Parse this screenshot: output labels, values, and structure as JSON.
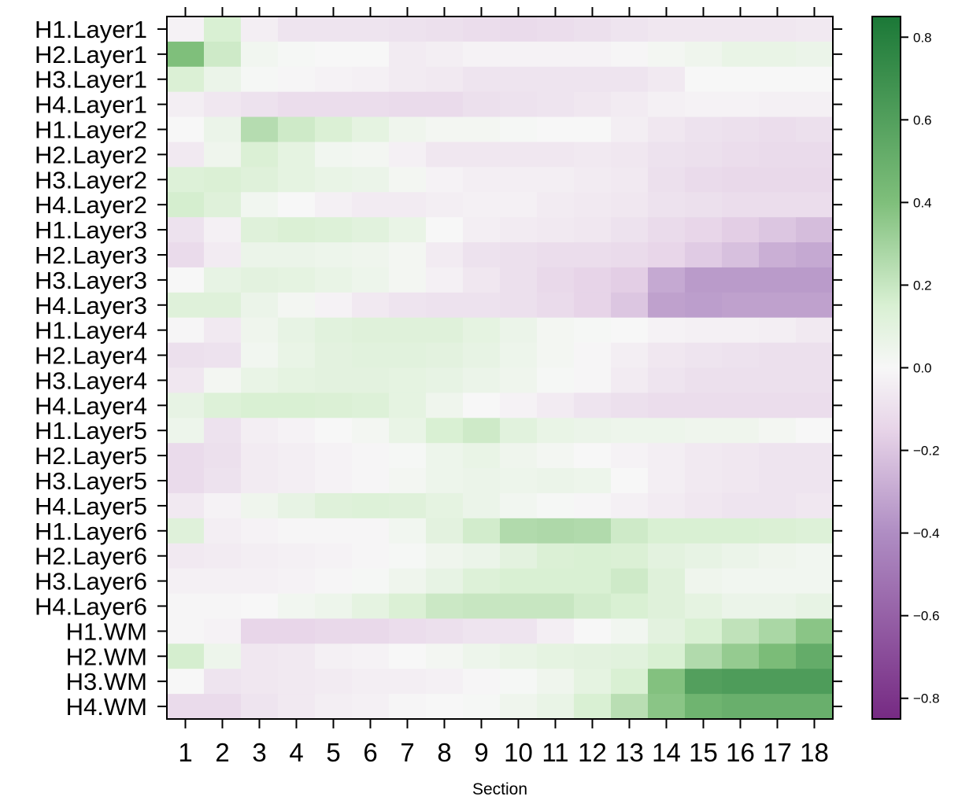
{
  "chart_data": {
    "type": "heatmap",
    "xlabel": "Section",
    "x": [
      "1",
      "2",
      "3",
      "4",
      "5",
      "6",
      "7",
      "8",
      "9",
      "10",
      "11",
      "12",
      "13",
      "14",
      "15",
      "16",
      "17",
      "18"
    ],
    "y": [
      "H1.Layer1",
      "H2.Layer1",
      "H3.Layer1",
      "H4.Layer1",
      "H1.Layer2",
      "H2.Layer2",
      "H3.Layer2",
      "H4.Layer2",
      "H1.Layer3",
      "H2.Layer3",
      "H3.Layer3",
      "H4.Layer3",
      "H1.Layer4",
      "H2.Layer4",
      "H3.Layer4",
      "H4.Layer4",
      "H1.Layer5",
      "H2.Layer5",
      "H3.Layer5",
      "H4.Layer5",
      "H1.Layer6",
      "H2.Layer6",
      "H3.Layer6",
      "H4.Layer6",
      "H1.WM",
      "H2.WM",
      "H3.WM",
      "H4.WM"
    ],
    "values": [
      [
        -0.02,
        0.15,
        -0.04,
        -0.08,
        -0.08,
        -0.08,
        -0.09,
        -0.1,
        -0.11,
        -0.12,
        -0.11,
        -0.1,
        -0.08,
        -0.07,
        -0.07,
        -0.07,
        -0.07,
        -0.06
      ],
      [
        0.4,
        0.18,
        0.03,
        0.01,
        0.0,
        0.0,
        -0.05,
        -0.04,
        -0.02,
        -0.02,
        -0.02,
        -0.02,
        -0.01,
        0.02,
        0.04,
        0.07,
        0.07,
        0.06
      ],
      [
        0.14,
        0.06,
        0.01,
        -0.01,
        -0.02,
        -0.03,
        -0.05,
        -0.06,
        -0.08,
        -0.08,
        -0.08,
        -0.08,
        -0.08,
        -0.06,
        0.0,
        0.0,
        0.0,
        0.0
      ],
      [
        -0.04,
        -0.07,
        -0.09,
        -0.11,
        -0.11,
        -0.11,
        -0.12,
        -0.12,
        -0.1,
        -0.09,
        -0.08,
        -0.07,
        -0.05,
        -0.03,
        -0.02,
        -0.02,
        -0.03,
        -0.03
      ],
      [
        0.0,
        0.06,
        0.25,
        0.18,
        0.14,
        0.09,
        0.04,
        0.02,
        0.02,
        0.01,
        0.0,
        0.0,
        -0.04,
        -0.07,
        -0.09,
        -0.1,
        -0.11,
        -0.1
      ],
      [
        -0.06,
        0.04,
        0.14,
        0.09,
        0.03,
        0.02,
        -0.03,
        -0.07,
        -0.07,
        -0.07,
        -0.07,
        -0.06,
        -0.07,
        -0.09,
        -0.1,
        -0.11,
        -0.12,
        -0.12
      ],
      [
        0.13,
        0.14,
        0.12,
        0.09,
        0.07,
        0.06,
        0.02,
        -0.02,
        -0.04,
        -0.04,
        -0.04,
        -0.05,
        -0.06,
        -0.1,
        -0.12,
        -0.13,
        -0.13,
        -0.13
      ],
      [
        0.16,
        0.12,
        0.03,
        0.0,
        -0.03,
        -0.05,
        -0.05,
        -0.04,
        -0.03,
        -0.03,
        -0.05,
        -0.06,
        -0.07,
        -0.09,
        -0.1,
        -0.11,
        -0.11,
        -0.11
      ],
      [
        -0.09,
        -0.03,
        0.12,
        0.14,
        0.13,
        0.11,
        0.07,
        0.0,
        -0.04,
        -0.05,
        -0.06,
        -0.07,
        -0.09,
        -0.12,
        -0.14,
        -0.17,
        -0.2,
        -0.23
      ],
      [
        -0.12,
        -0.05,
        0.06,
        0.06,
        0.05,
        0.04,
        0.02,
        -0.05,
        -0.09,
        -0.1,
        -0.11,
        -0.11,
        -0.12,
        -0.14,
        -0.18,
        -0.22,
        -0.28,
        -0.3
      ],
      [
        0.0,
        0.08,
        0.1,
        0.09,
        0.07,
        0.05,
        0.02,
        -0.03,
        -0.07,
        -0.1,
        -0.13,
        -0.15,
        -0.17,
        -0.3,
        -0.35,
        -0.35,
        -0.35,
        -0.35
      ],
      [
        0.12,
        0.12,
        0.06,
        0.02,
        -0.02,
        -0.06,
        -0.08,
        -0.09,
        -0.09,
        -0.1,
        -0.12,
        -0.15,
        -0.2,
        -0.33,
        -0.34,
        -0.33,
        -0.33,
        -0.33
      ],
      [
        -0.01,
        -0.06,
        0.04,
        0.08,
        0.11,
        0.12,
        0.12,
        0.12,
        0.09,
        0.06,
        0.02,
        0.01,
        0.0,
        -0.02,
        -0.03,
        -0.03,
        -0.04,
        -0.06
      ],
      [
        -0.1,
        -0.09,
        0.03,
        0.07,
        0.1,
        0.11,
        0.11,
        0.1,
        0.08,
        0.05,
        0.02,
        -0.01,
        -0.04,
        -0.07,
        -0.08,
        -0.09,
        -0.1,
        -0.1
      ],
      [
        -0.07,
        0.02,
        0.07,
        0.09,
        0.1,
        0.1,
        0.09,
        0.08,
        0.06,
        0.04,
        0.01,
        -0.01,
        -0.05,
        -0.08,
        -0.1,
        -0.1,
        -0.1,
        -0.1
      ],
      [
        0.08,
        0.13,
        0.15,
        0.15,
        0.14,
        0.13,
        0.09,
        0.04,
        0.0,
        -0.02,
        -0.05,
        -0.08,
        -0.1,
        -0.11,
        -0.11,
        -0.11,
        -0.11,
        -0.11
      ],
      [
        0.05,
        -0.09,
        -0.04,
        -0.02,
        0.0,
        0.02,
        0.07,
        0.15,
        0.18,
        0.11,
        0.07,
        0.06,
        0.05,
        0.05,
        0.04,
        0.04,
        0.02,
        0.0
      ],
      [
        -0.12,
        -0.1,
        -0.05,
        -0.04,
        -0.02,
        -0.01,
        0.01,
        0.05,
        0.07,
        0.04,
        0.02,
        0.0,
        -0.02,
        -0.04,
        -0.06,
        -0.07,
        -0.08,
        -0.08
      ],
      [
        -0.12,
        -0.09,
        -0.05,
        -0.04,
        -0.02,
        -0.01,
        0.02,
        0.05,
        0.06,
        0.05,
        0.06,
        0.05,
        0.0,
        -0.04,
        -0.06,
        -0.07,
        -0.08,
        -0.08
      ],
      [
        -0.06,
        -0.02,
        0.04,
        0.08,
        0.12,
        0.13,
        0.12,
        0.09,
        0.06,
        0.03,
        0.01,
        -0.01,
        -0.03,
        -0.05,
        -0.07,
        -0.08,
        -0.08,
        -0.07
      ],
      [
        0.12,
        -0.04,
        -0.02,
        -0.01,
        -0.01,
        -0.01,
        0.03,
        0.1,
        0.17,
        0.26,
        0.27,
        0.26,
        0.18,
        0.15,
        0.15,
        0.15,
        0.14,
        0.13
      ],
      [
        -0.06,
        -0.05,
        -0.04,
        -0.03,
        -0.02,
        -0.01,
        0.01,
        0.04,
        0.06,
        0.1,
        0.14,
        0.15,
        0.14,
        0.1,
        0.08,
        0.06,
        0.04,
        0.03
      ],
      [
        -0.03,
        -0.03,
        -0.03,
        -0.02,
        -0.01,
        0.01,
        0.04,
        0.08,
        0.13,
        0.15,
        0.15,
        0.15,
        0.18,
        0.12,
        0.04,
        0.03,
        0.03,
        0.03
      ],
      [
        -0.01,
        -0.01,
        0.0,
        0.03,
        0.05,
        0.09,
        0.14,
        0.19,
        0.2,
        0.2,
        0.2,
        0.17,
        0.15,
        0.12,
        0.09,
        0.06,
        0.06,
        0.08
      ],
      [
        -0.01,
        -0.02,
        -0.14,
        -0.14,
        -0.13,
        -0.13,
        -0.11,
        -0.1,
        -0.08,
        -0.08,
        -0.04,
        0.0,
        0.03,
        0.1,
        0.15,
        0.22,
        0.28,
        0.37
      ],
      [
        0.16,
        0.05,
        -0.07,
        -0.06,
        -0.03,
        -0.02,
        0.0,
        0.02,
        0.05,
        0.07,
        0.09,
        0.1,
        0.11,
        0.15,
        0.26,
        0.34,
        0.42,
        0.52
      ],
      [
        0.0,
        -0.08,
        -0.07,
        -0.06,
        -0.05,
        -0.04,
        -0.04,
        -0.03,
        -0.01,
        0.01,
        0.04,
        0.09,
        0.15,
        0.39,
        0.6,
        0.62,
        0.62,
        0.62
      ],
      [
        -0.12,
        -0.12,
        -0.08,
        -0.06,
        -0.04,
        -0.03,
        -0.01,
        0.0,
        0.01,
        0.04,
        0.07,
        0.15,
        0.24,
        0.37,
        0.47,
        0.5,
        0.5,
        0.5
      ]
    ],
    "colorbar": {
      "min": -0.85,
      "max": 0.85,
      "ticks": [
        0.8,
        0.6,
        0.4,
        0.2,
        0.0,
        -0.2,
        -0.4,
        -0.6,
        -0.8
      ],
      "tick_labels": [
        "0.8",
        "0.6",
        "0.4",
        "0.2",
        "0.0",
        "−0.2",
        "−0.4",
        "−0.6",
        "−0.8"
      ]
    },
    "colormap": {
      "name": "PRGn",
      "stops": [
        [
          -0.85,
          "#762a83"
        ],
        [
          -0.4,
          "#af8dc3"
        ],
        [
          -0.15,
          "#e7d4e8"
        ],
        [
          0.0,
          "#f7f7f7"
        ],
        [
          0.15,
          "#d9f0d3"
        ],
        [
          0.4,
          "#7fbf7b"
        ],
        [
          0.85,
          "#1b7837"
        ]
      ]
    }
  }
}
